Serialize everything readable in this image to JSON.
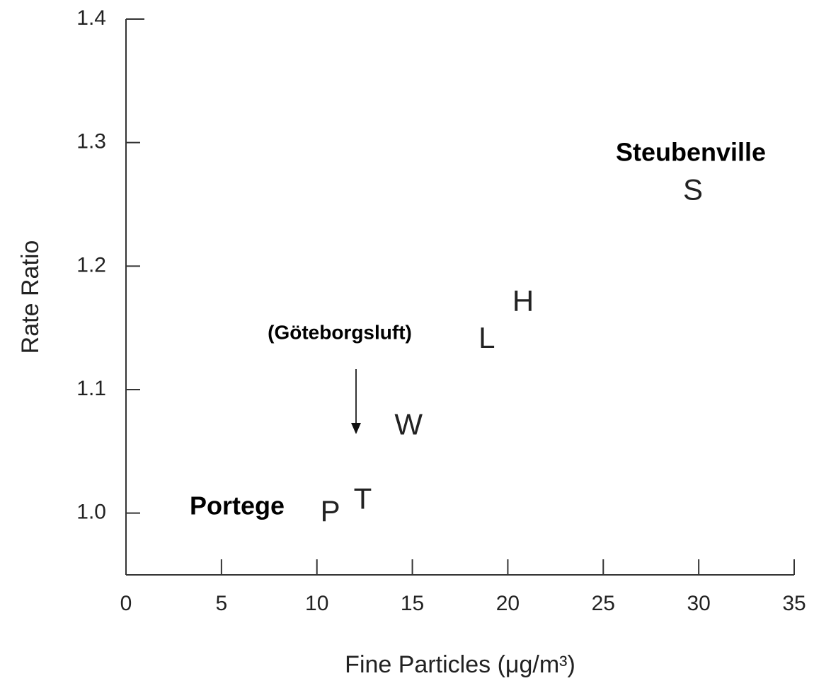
{
  "chart_data": {
    "type": "scatter",
    "x_label": "Fine Particles (μg/m³)",
    "y_label": "Rate Ratio",
    "x": [
      10.7,
      12.4,
      14.8,
      18.9,
      20.8,
      29.7
    ],
    "values": [
      1.0,
      1.01,
      1.07,
      1.14,
      1.17,
      1.26
    ],
    "point_labels": [
      "P",
      "T",
      "W",
      "L",
      "H",
      "S"
    ],
    "color": "#222222",
    "xlim": [
      0,
      35
    ],
    "xticks": [
      0,
      5,
      10,
      15,
      20,
      25,
      30,
      35
    ],
    "ylim": [
      0.95,
      1.4
    ],
    "yticks": [
      {
        "value": 1,
        "label": "1.0"
      },
      1.1,
      1.2,
      1.3,
      1.4
    ],
    "annotations": [
      {
        "text": "Steubenville"
      },
      {
        "text": "Portege"
      },
      {
        "text": "(Göteborgsluft)"
      }
    ]
  }
}
